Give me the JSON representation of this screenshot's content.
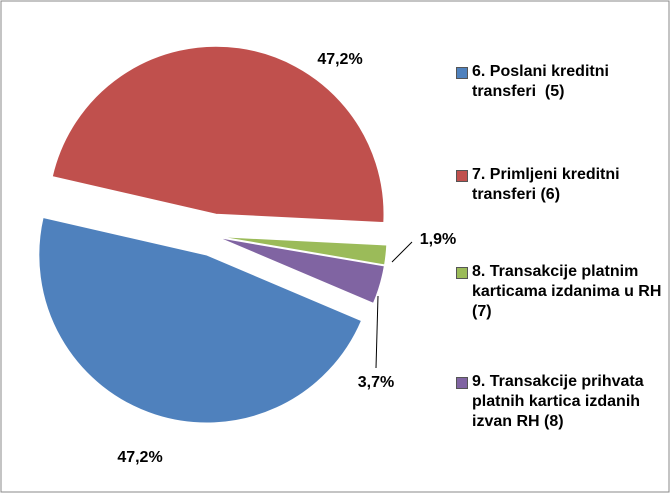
{
  "chart_data": {
    "type": "pie",
    "categories": [
      "6. Poslani kreditni transferi  (5)",
      "7. Primljeni kreditni transferi (6)",
      "8. Transakcije platnim karticama izdanima u RH (7)",
      "9. Transakcije prihvata platnih kartica izdanih izvan RH (8)"
    ],
    "values": [
      47.2,
      47.2,
      1.9,
      3.7
    ],
    "value_labels": [
      "47,2%",
      "47,2%",
      "1,9%",
      "3,7%"
    ],
    "colors": [
      "#4f81bd",
      "#c0504d",
      "#9bbb59",
      "#8064a2"
    ],
    "legend": "right"
  }
}
